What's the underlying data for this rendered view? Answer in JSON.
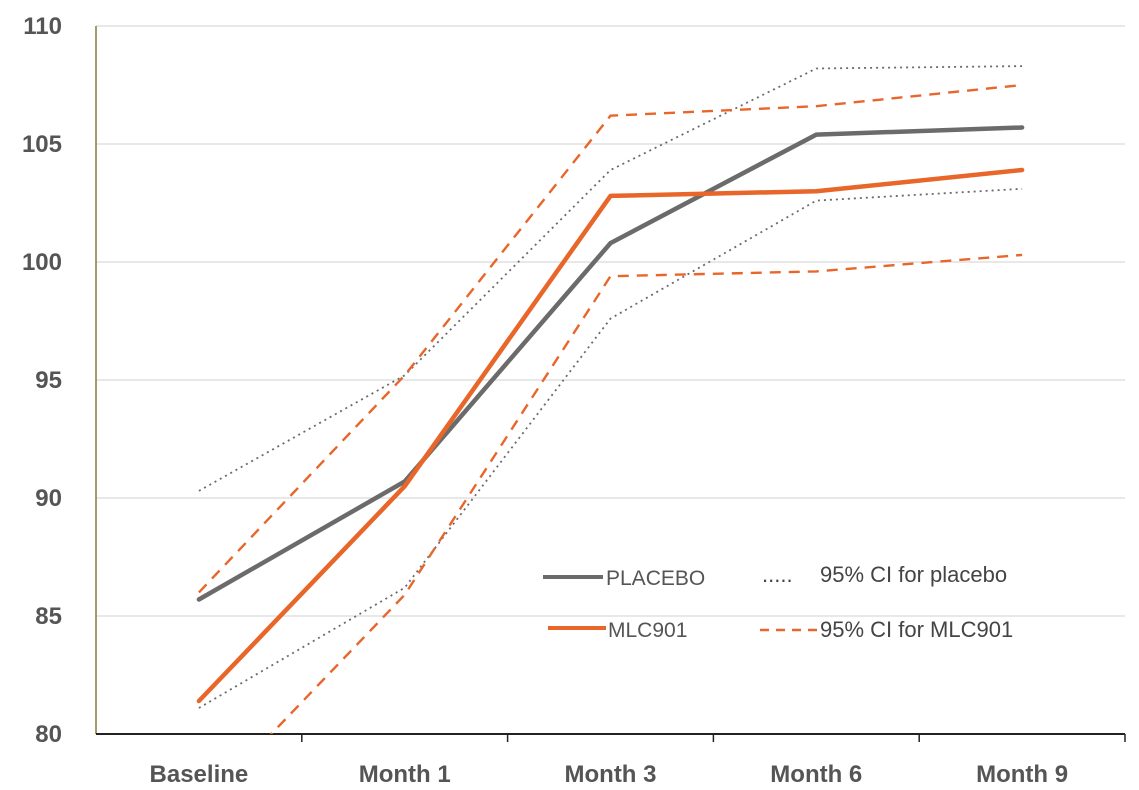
{
  "chart_data": {
    "type": "line",
    "title": "",
    "xlabel": "",
    "ylabel": "",
    "categories": [
      "Baseline",
      "Month 1",
      "Month 3",
      "Month 6",
      "Month 9"
    ],
    "ylim": [
      80,
      110
    ],
    "yticks": [
      80,
      85,
      90,
      95,
      100,
      105,
      110
    ],
    "grid": "horizontal",
    "legend_position": "bottom-right",
    "series": [
      {
        "name": "PLACEBO",
        "style": "solid",
        "color": "#6b6b6b",
        "values": [
          85.7,
          90.7,
          100.8,
          105.4,
          105.7
        ]
      },
      {
        "name": "MLC901",
        "style": "solid",
        "color": "#e8662a",
        "values": [
          81.4,
          90.5,
          102.8,
          103.0,
          103.9
        ]
      },
      {
        "name": "95% CI for placebo",
        "style": "dotted",
        "color": "#6b6b6b",
        "upper": [
          90.3,
          95.2,
          103.9,
          108.2,
          108.3
        ],
        "lower": [
          81.1,
          86.2,
          97.6,
          102.6,
          103.1
        ]
      },
      {
        "name": "95% CI for MLC901",
        "style": "dashed",
        "color": "#e8662a",
        "upper": [
          86.0,
          95.2,
          106.2,
          106.6,
          107.5
        ],
        "lower": [
          76.8,
          85.9,
          99.4,
          99.6,
          100.3
        ]
      }
    ],
    "legend": [
      {
        "line_label": "PLACEBO",
        "ci_label": "95% CI for placebo",
        "ci_marker": "....."
      },
      {
        "line_label": "MLC901",
        "ci_label": "95% CI for MLC901",
        "ci_marker": "- - -"
      }
    ]
  }
}
